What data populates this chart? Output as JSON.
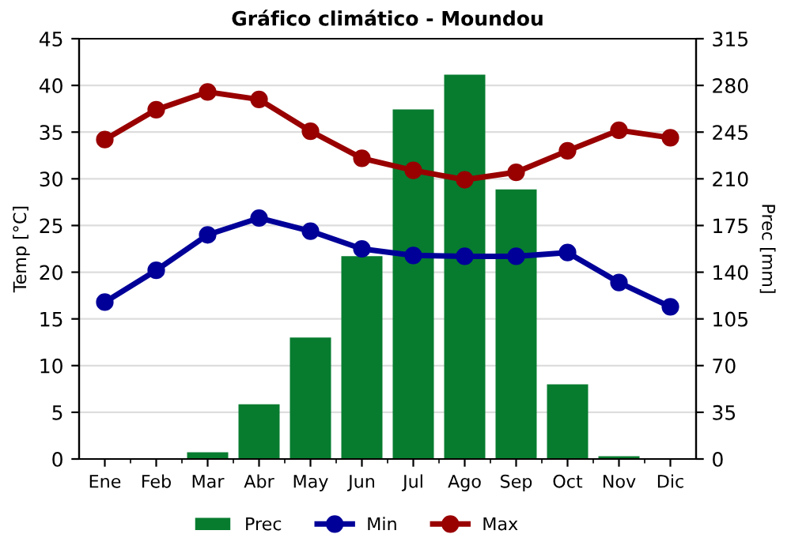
{
  "chart_data": {
    "type": "bar",
    "title": "Gráfico climático - Moundou",
    "ylabel": "Temp [°C]",
    "y2label": "Prec [mm]",
    "categories": [
      "Ene",
      "Feb",
      "Mar",
      "Abr",
      "May",
      "Jun",
      "Jul",
      "Ago",
      "Sep",
      "Oct",
      "Nov",
      "Dic"
    ],
    "series": [
      {
        "name": "Prec",
        "axis": "y2",
        "color": "#077c2f",
        "values": [
          0,
          0,
          5,
          41,
          91,
          152,
          262,
          288,
          202,
          56,
          2,
          0
        ]
      },
      {
        "name": "Min",
        "type": "line",
        "color": "#000099",
        "values": [
          16.8,
          20.2,
          24.0,
          25.8,
          24.4,
          22.5,
          21.8,
          21.7,
          21.7,
          22.1,
          18.9,
          16.3
        ]
      },
      {
        "name": "Max",
        "type": "line",
        "color": "#990000",
        "values": [
          34.2,
          37.4,
          39.3,
          38.5,
          35.1,
          32.2,
          30.9,
          29.9,
          30.7,
          33.0,
          35.2,
          34.4
        ]
      }
    ],
    "ylim": [
      0,
      45
    ],
    "yticks": [
      0,
      5,
      10,
      15,
      20,
      25,
      30,
      35,
      40,
      45
    ],
    "y2lim": [
      0,
      315
    ],
    "y2ticks": [
      0,
      35,
      70,
      105,
      140,
      175,
      210,
      245,
      280,
      315
    ],
    "grid": true,
    "legend": "bottom",
    "marker": "circle",
    "line_style": "solid"
  }
}
